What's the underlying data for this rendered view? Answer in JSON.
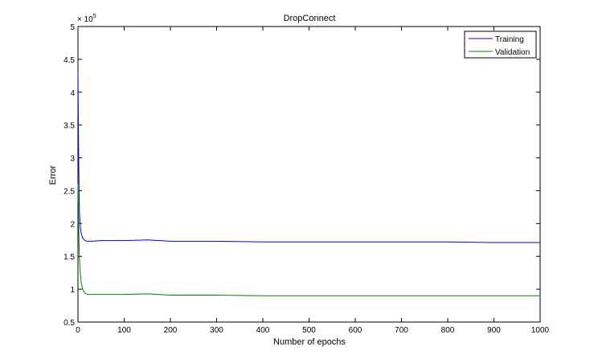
{
  "chart_data": {
    "type": "line",
    "title": "DropConnect",
    "xlabel": "Number of epochs",
    "ylabel": "Error",
    "y_multiplier_label": "× 10",
    "y_multiplier_exp": "5",
    "xlim": [
      0,
      1000
    ],
    "ylim": [
      0.5,
      5
    ],
    "xticks": [
      0,
      100,
      200,
      300,
      400,
      500,
      600,
      700,
      800,
      900,
      1000
    ],
    "xtick_labels": [
      "0",
      "100",
      "200",
      "300",
      "400",
      "500",
      "600",
      "700",
      "800",
      "900",
      "1000"
    ],
    "yticks": [
      0.5,
      1,
      1.5,
      2,
      2.5,
      3,
      3.5,
      4,
      4.5,
      5
    ],
    "ytick_labels": [
      "0.5",
      "1",
      "1.5",
      "2",
      "2.5",
      "3",
      "3.5",
      "4",
      "4.5",
      "5"
    ],
    "grid": false,
    "legend_position": "top-right",
    "series": [
      {
        "name": "Training",
        "color": "#0000ff",
        "x": [
          0,
          1,
          2,
          3,
          5,
          7,
          10,
          15,
          20,
          30,
          50,
          100,
          150,
          200,
          300,
          400,
          500,
          600,
          700,
          800,
          900,
          1000
        ],
        "values": [
          4.3,
          3.4,
          2.7,
          2.2,
          1.95,
          1.85,
          1.78,
          1.74,
          1.73,
          1.73,
          1.74,
          1.74,
          1.75,
          1.73,
          1.73,
          1.72,
          1.72,
          1.72,
          1.72,
          1.72,
          1.71,
          1.71
        ]
      },
      {
        "name": "Validation",
        "color": "#008000",
        "x": [
          0,
          1,
          2,
          3,
          5,
          7,
          10,
          15,
          20,
          30,
          50,
          100,
          150,
          200,
          300,
          400,
          500,
          600,
          700,
          800,
          900,
          1000
        ],
        "values": [
          2.6,
          2.2,
          1.8,
          1.5,
          1.25,
          1.1,
          1.0,
          0.94,
          0.92,
          0.92,
          0.92,
          0.92,
          0.93,
          0.91,
          0.91,
          0.9,
          0.9,
          0.9,
          0.9,
          0.9,
          0.9,
          0.9
        ]
      }
    ]
  }
}
